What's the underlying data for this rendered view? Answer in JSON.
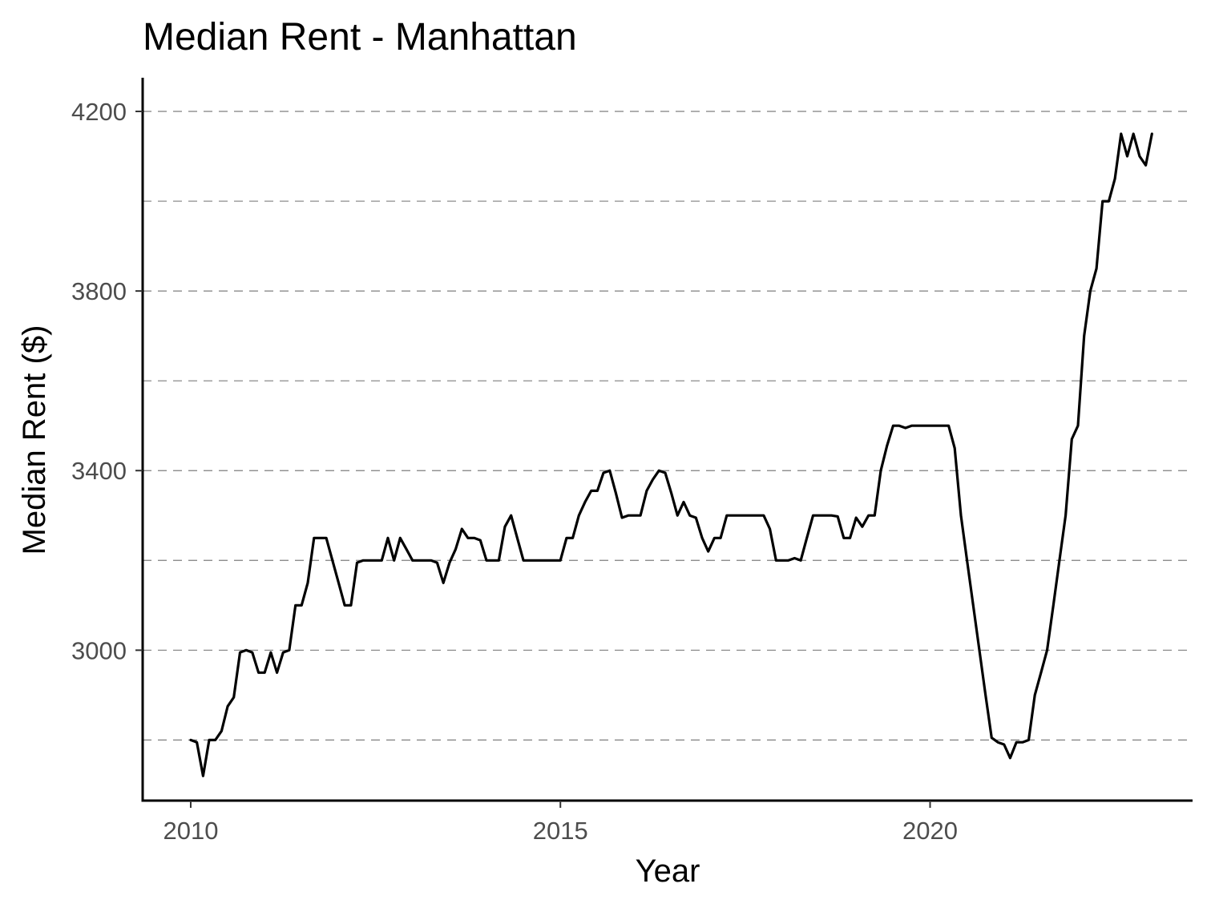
{
  "chart_data": {
    "type": "line",
    "title": "Median Rent - Manhattan",
    "xlabel": "Year",
    "ylabel": "Median Rent ($)",
    "xlim": [
      2009.35,
      2023.55
    ],
    "ylim": [
      2665,
      4275
    ],
    "x_ticks": [
      2010,
      2015,
      2020
    ],
    "y_ticks": [
      3000,
      3400,
      3800,
      4200
    ],
    "y_minor_grid": [
      2800,
      3200,
      3600,
      4000
    ],
    "grid": {
      "major_y": true,
      "minor_y": true,
      "style": "dashed",
      "x": false
    },
    "legend": "none",
    "line_color": "#000000",
    "series": [
      {
        "x": [
          2010.0,
          2010.083,
          2010.167,
          2010.25,
          2010.333,
          2010.417,
          2010.5,
          2010.583,
          2010.667,
          2010.75,
          2010.833,
          2010.917,
          2011.0,
          2011.083,
          2011.167,
          2011.25,
          2011.333,
          2011.417,
          2011.5,
          2011.583,
          2011.667,
          2011.75,
          2011.833,
          2011.917,
          2012.0,
          2012.083,
          2012.167,
          2012.25,
          2012.333,
          2012.417,
          2012.5,
          2012.583,
          2012.667,
          2012.75,
          2012.833,
          2012.917,
          2013.0,
          2013.083,
          2013.167,
          2013.25,
          2013.333,
          2013.417,
          2013.5,
          2013.583,
          2013.667,
          2013.75,
          2013.833,
          2013.917,
          2014.0,
          2014.083,
          2014.167,
          2014.25,
          2014.333,
          2014.417,
          2014.5,
          2014.583,
          2014.667,
          2014.75,
          2014.833,
          2014.917,
          2015.0,
          2015.083,
          2015.167,
          2015.25,
          2015.333,
          2015.417,
          2015.5,
          2015.583,
          2015.667,
          2015.75,
          2015.833,
          2015.917,
          2016.0,
          2016.083,
          2016.167,
          2016.25,
          2016.333,
          2016.417,
          2016.5,
          2016.583,
          2016.667,
          2016.75,
          2016.833,
          2016.917,
          2017.0,
          2017.083,
          2017.167,
          2017.25,
          2017.333,
          2017.417,
          2017.5,
          2017.583,
          2017.667,
          2017.75,
          2017.833,
          2017.917,
          2018.0,
          2018.083,
          2018.167,
          2018.25,
          2018.333,
          2018.417,
          2018.5,
          2018.583,
          2018.667,
          2018.75,
          2018.833,
          2018.917,
          2019.0,
          2019.083,
          2019.167,
          2019.25,
          2019.333,
          2019.417,
          2019.5,
          2019.583,
          2019.667,
          2019.75,
          2019.833,
          2019.917,
          2020.0,
          2020.083,
          2020.167,
          2020.25,
          2020.333,
          2020.417,
          2020.5,
          2020.583,
          2020.667,
          2020.75,
          2020.833,
          2020.917,
          2021.0,
          2021.083,
          2021.167,
          2021.25,
          2021.333,
          2021.417,
          2021.5,
          2021.583,
          2021.667,
          2021.75,
          2021.833,
          2021.917,
          2022.0,
          2022.083,
          2022.167,
          2022.25,
          2022.333,
          2022.417,
          2022.5,
          2022.583,
          2022.667,
          2022.75,
          2022.833,
          2022.917,
          2023.0
        ],
        "values": [
          2800,
          2795,
          2720,
          2800,
          2800,
          2820,
          2875,
          2895,
          2995,
          3000,
          2995,
          2950,
          2950,
          2995,
          2950,
          2995,
          3000,
          3100,
          3100,
          3150,
          3250,
          3250,
          3250,
          3200,
          3150,
          3100,
          3100,
          3195,
          3200,
          3200,
          3200,
          3200,
          3250,
          3200,
          3250,
          3225,
          3200,
          3200,
          3200,
          3200,
          3195,
          3150,
          3195,
          3225,
          3270,
          3250,
          3250,
          3245,
          3200,
          3200,
          3200,
          3275,
          3300,
          3250,
          3200,
          3200,
          3200,
          3200,
          3200,
          3200,
          3200,
          3250,
          3250,
          3300,
          3330,
          3355,
          3355,
          3395,
          3400,
          3350,
          3295,
          3300,
          3300,
          3300,
          3355,
          3380,
          3400,
          3395,
          3350,
          3300,
          3330,
          3300,
          3295,
          3250,
          3220,
          3250,
          3250,
          3300,
          3300,
          3300,
          3300,
          3300,
          3300,
          3300,
          3270,
          3200,
          3200,
          3200,
          3205,
          3200,
          3250,
          3300,
          3300,
          3300,
          3300,
          3298,
          3250,
          3250,
          3295,
          3275,
          3300,
          3300,
          3400,
          3455,
          3500,
          3500,
          3495,
          3500,
          3500,
          3500,
          3500,
          3500,
          3500,
          3500,
          3450,
          3300,
          3200,
          3100,
          3000,
          2900,
          2805,
          2795,
          2790,
          2760,
          2795,
          2795,
          2800,
          2900,
          2950,
          3000,
          3100,
          3200,
          3300,
          3470,
          3500,
          3700,
          3800,
          3850,
          4000,
          4000,
          4050,
          4150,
          4100,
          4150,
          4100,
          4080,
          4150
        ]
      }
    ]
  }
}
